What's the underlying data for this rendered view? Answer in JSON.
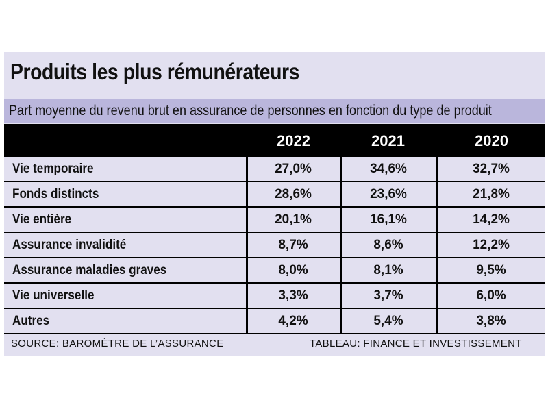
{
  "chart_data": {
    "type": "table",
    "title": "Produits les plus rémunérateurs",
    "subtitle": "Part moyenne du revenu brut en assurance de personnes en fonction du type de produit",
    "columns": [
      "2022",
      "2021",
      "2020"
    ],
    "rows": [
      {
        "label": "Vie temporaire",
        "values": [
          "27,0%",
          "34,6%",
          "32,7%"
        ]
      },
      {
        "label": "Fonds distincts",
        "values": [
          "28,6%",
          "23,6%",
          "21,8%"
        ]
      },
      {
        "label": "Vie entière",
        "values": [
          "20,1%",
          "16,1%",
          "14,2%"
        ]
      },
      {
        "label": "Assurance invalidité",
        "values": [
          "8,7%",
          "8,6%",
          "12,2%"
        ]
      },
      {
        "label": "Assurance maladies graves",
        "values": [
          "8,0%",
          "8,1%",
          "9,5%"
        ]
      },
      {
        "label": "Vie universelle",
        "values": [
          "3,3%",
          "3,7%",
          "6,0%"
        ]
      },
      {
        "label": "Autres",
        "values": [
          "4,2%",
          "5,4%",
          "3,8%"
        ]
      }
    ],
    "source": "SOURCE: BAROMÈTRE DE L’ASSURANCE",
    "credit": "TABLEAU: FINANCE ET INVESTISSEMENT"
  },
  "colors": {
    "panel": "#e2e0f0",
    "subtitle_band": "#bab6dc",
    "header": "#000000",
    "text": "#111111"
  }
}
